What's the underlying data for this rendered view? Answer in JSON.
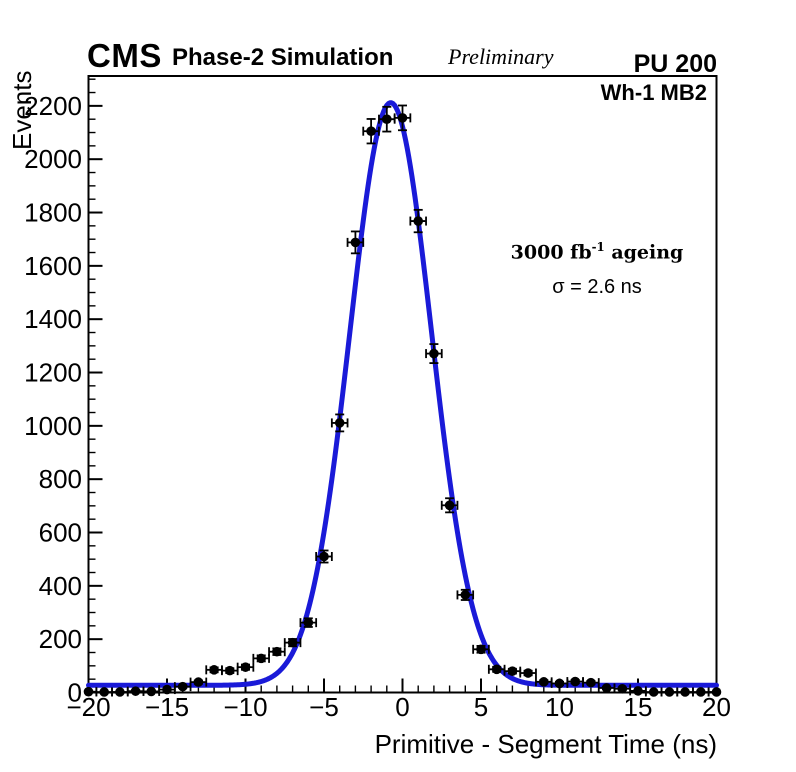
{
  "header": {
    "experiment": "CMS",
    "label": "Phase-2 Simulation",
    "sublabel": "Preliminary",
    "pileup": "PU 200"
  },
  "annotations": {
    "chamber": "Wh-1 MB2",
    "lumi_prefix": "3000 fb",
    "lumi_sup": "-1",
    "lumi_suffix": " ageing",
    "sigma": "σ = 2.6 ns"
  },
  "chart_data": {
    "type": "scatter",
    "title": "",
    "xlabel": "Primitive - Segment Time (ns)",
    "ylabel": "Events",
    "xlim": [
      -20,
      20
    ],
    "ylim": [
      0,
      2312
    ],
    "grid": false,
    "legend_position": "none",
    "x_major_tick_step": 5,
    "x_minor_tick_step": 1,
    "y_major_tick_step": 200,
    "y_minor_tick_step": 50,
    "x_tick_labels": [
      "-20",
      "-15",
      "-10",
      "-5",
      "0",
      "5",
      "10",
      "15",
      "20"
    ],
    "y_tick_labels": [
      "0",
      "200",
      "400",
      "600",
      "800",
      "1000",
      "1200",
      "1400",
      "1600",
      "1800",
      "2000",
      "2200"
    ],
    "series": [
      {
        "name": "simulated-data-points",
        "marker": "filled-circle",
        "color": "#000000",
        "xerr": 0.5,
        "yerr": "sqrt",
        "x": [
          -20,
          -19,
          -18,
          -17,
          -16,
          -15,
          -14,
          -13,
          -12,
          -11,
          -10,
          -9,
          -8,
          -7,
          -6,
          -5,
          -4,
          -3,
          -2,
          -1,
          0,
          1,
          2,
          3,
          4,
          5,
          6,
          7,
          8,
          9,
          10,
          11,
          12,
          13,
          14,
          15,
          16,
          17,
          18,
          19,
          20
        ],
        "y": [
          3,
          2,
          2,
          5,
          4,
          11,
          22,
          39,
          85,
          82,
          95,
          128,
          153,
          187,
          262,
          510,
          1011,
          1688,
          2105,
          2150,
          2155,
          1768,
          1271,
          702,
          366,
          162,
          87,
          80,
          73,
          40,
          34,
          41,
          37,
          17,
          14,
          6,
          2,
          2,
          2,
          2,
          2
        ]
      },
      {
        "name": "gaussian-fit",
        "type": "function",
        "color": "#1a1ad8",
        "params": {
          "baseline": 27,
          "amplitude": 2185,
          "mean": -0.75,
          "sigma": 2.6
        }
      }
    ],
    "colors": {
      "fit": "#1a1ad8",
      "marker": "#000000",
      "frame": "#000000"
    }
  }
}
